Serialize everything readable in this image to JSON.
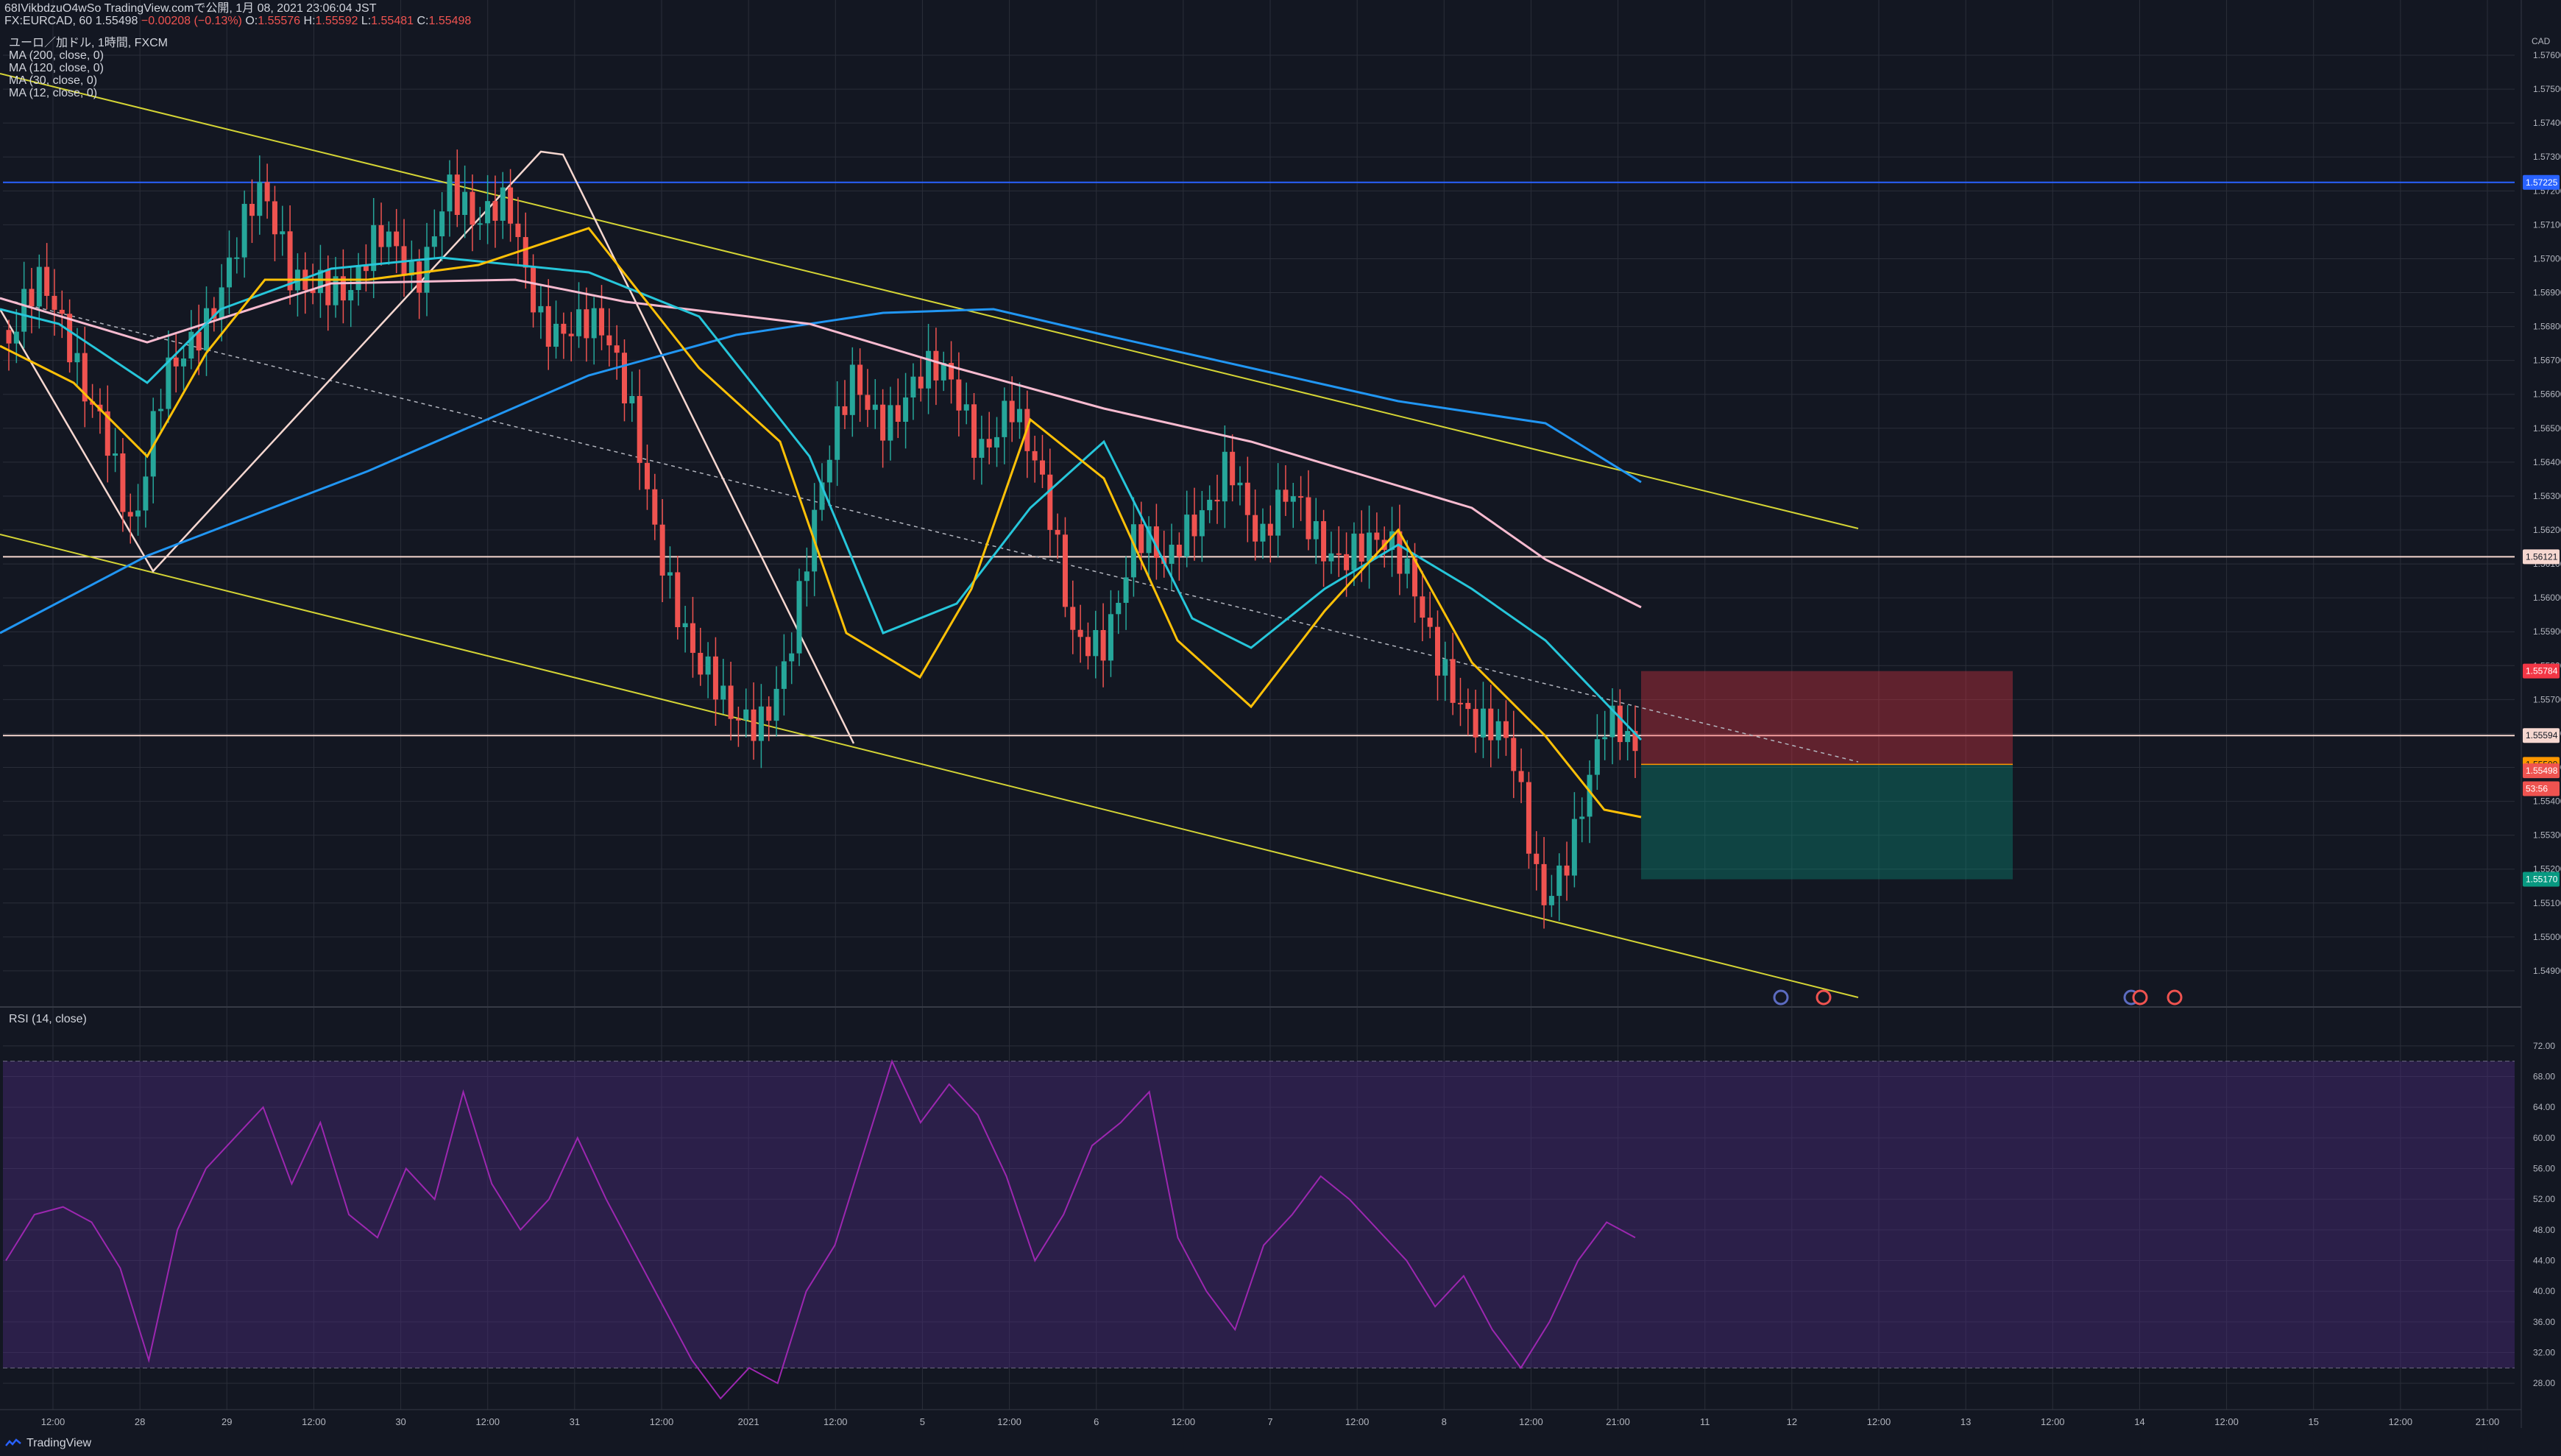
{
  "header": {
    "line1": "68IVikbdzuO4wSo TradingView.comで公開, 1月 08, 2021 23:06:04 JST",
    "symbol": "FX:EURCAD, 60",
    "last": "1.55498",
    "change": "−0.00208 (−0.13%)",
    "o_label": "O:",
    "o": "1.55576",
    "h_label": "H:",
    "h": "1.55592",
    "l_label": "L:",
    "l": "1.55481",
    "c_label": "C:",
    "c": "1.55498"
  },
  "legend": {
    "title": "ユーロ／加ドル, 1時間, FXCM",
    "ma200": "MA (200, close, 0)",
    "ma120": "MA (120, close, 0)",
    "ma30": "MA (30, close, 0)",
    "ma12": "MA (12, close, 0)"
  },
  "rsi_legend": "RSI (14, close)",
  "footer": {
    "brand": "TradingView"
  },
  "chart_data": [
    {
      "type": "candlestick",
      "title": "ユーロ／加ドル, 1時間, FXCM",
      "currency": "CAD",
      "ylim": [
        1.548,
        1.5765
      ],
      "y_ticks": [
        "1.57600",
        "1.57500",
        "1.57400",
        "1.57300",
        "1.57200",
        "1.57100",
        "1.57000",
        "1.56900",
        "1.56800",
        "1.56700",
        "1.56600",
        "1.56500",
        "1.56400",
        "1.56300",
        "1.56200",
        "1.56100",
        "1.56000",
        "1.55900",
        "1.55800",
        "1.55700",
        "1.55600",
        "1.55500",
        "1.55400",
        "1.55300",
        "1.55200",
        "1.55100",
        "1.55000",
        "1.54900"
      ],
      "x_ticks": [
        "12:00",
        "28",
        "29",
        "12:00",
        "30",
        "12:00",
        "31",
        "12:00",
        "2021",
        "12:00",
        "5",
        "12:00",
        "6",
        "12:00",
        "7",
        "12:00",
        "8",
        "12:00",
        "21:00",
        "11",
        "12",
        "12:00",
        "13",
        "12:00",
        "14",
        "12:00",
        "15",
        "12:00",
        "21:00"
      ],
      "price_path": [
        1.5675,
        1.5685,
        1.5676,
        1.566,
        1.5612,
        1.566,
        1.5685,
        1.57,
        1.5712,
        1.5695,
        1.5702,
        1.5688,
        1.57,
        1.5698,
        1.5728,
        1.5702,
        1.5712,
        1.569,
        1.568,
        1.567,
        1.5655,
        1.5615,
        1.5575,
        1.556,
        1.557,
        1.559,
        1.5625,
        1.5665,
        1.566,
        1.5662,
        1.5658,
        1.5648,
        1.5665,
        1.5628,
        1.5585,
        1.5595,
        1.562,
        1.56,
        1.5625,
        1.565,
        1.561,
        1.5625,
        1.5622,
        1.5618,
        1.5608,
        1.56,
        1.5585,
        1.556,
        1.5548,
        1.5515,
        1.5535,
        1.5556,
        1.555
      ],
      "price_lines": [
        {
          "value": "1.57225",
          "color": "#2962ff"
        },
        {
          "value": "1.56121",
          "color": "#f6d7d0"
        },
        {
          "value": "1.55594",
          "color": "#f6d7d0"
        }
      ],
      "price_tags": [
        {
          "label": "1.57225",
          "color": "#2962ff"
        },
        {
          "label": "1.56121",
          "color": "#f6d7d0"
        },
        {
          "label": "1.55784",
          "color": "#f23645"
        },
        {
          "label": "1.55594",
          "color": "#f6d7d0"
        },
        {
          "label": "1.55509",
          "color": "#ff9800"
        },
        {
          "label": "1.55498",
          "color": "#ef5350"
        },
        {
          "label": "53:56",
          "color": "#ef5350"
        },
        {
          "label": "1.55170",
          "color": "#089981"
        }
      ],
      "position": {
        "stop": 1.55784,
        "entry": 1.55509,
        "target": 1.5517
      },
      "series": [
        {
          "name": "MA (200, close, 0)",
          "color": "#2196f3"
        },
        {
          "name": "MA (120, close, 0)",
          "color": "#f8bbd0"
        },
        {
          "name": "MA (30, close, 0)",
          "color": "#26c6da"
        },
        {
          "name": "MA (12, close, 0)",
          "color": "#ffc107"
        }
      ]
    },
    {
      "type": "line",
      "title": "RSI (14, close)",
      "ylim": [
        26,
        74
      ],
      "y_ticks": [
        "72.00",
        "68.00",
        "64.00",
        "60.00",
        "56.00",
        "52.00",
        "48.00",
        "44.00",
        "40.00",
        "36.00",
        "32.00",
        "28.00"
      ],
      "bands": [
        30,
        70
      ],
      "values": [
        44,
        50,
        51,
        49,
        43,
        31,
        48,
        56,
        60,
        64,
        54,
        62,
        50,
        47,
        56,
        52,
        66,
        54,
        48,
        52,
        60,
        52,
        45,
        38,
        31,
        26,
        30,
        28,
        40,
        46,
        58,
        70,
        62,
        67,
        63,
        55,
        44,
        50,
        59,
        62,
        66,
        47,
        40,
        35,
        46,
        50,
        55,
        52,
        48,
        44,
        38,
        42,
        35,
        30,
        36,
        44,
        49,
        47
      ],
      "color": "#9c27b0"
    }
  ]
}
